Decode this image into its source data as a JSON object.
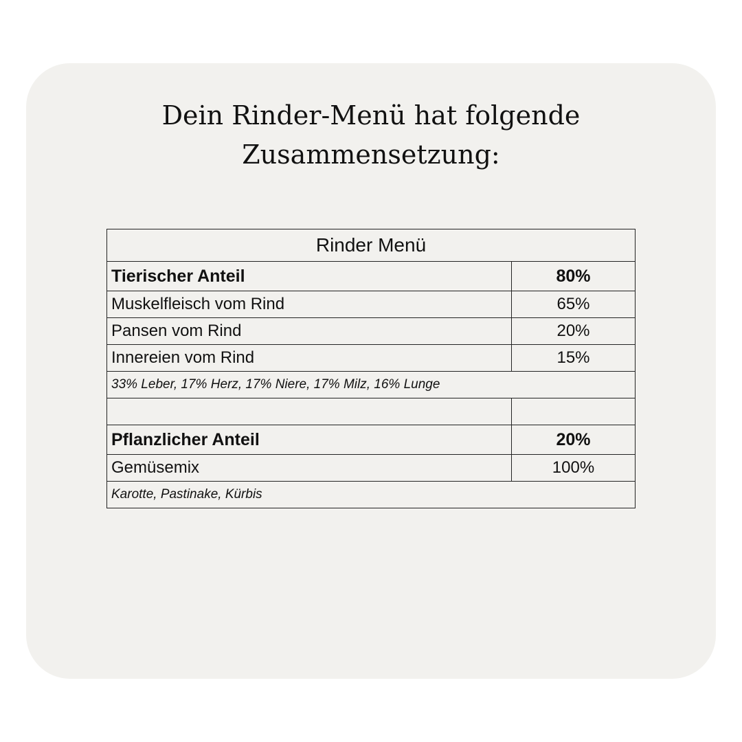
{
  "title": {
    "line1": "Dein Rinder-Menü hat folgende",
    "line2": "Zusammensetzung:"
  },
  "table": {
    "header": "Rinder Menü",
    "animal": {
      "label": "Tierischer Anteil",
      "value": "80%",
      "items": [
        {
          "label": "Muskelfleisch vom Rind",
          "value": "65%"
        },
        {
          "label": "Pansen vom Rind",
          "value": "20%"
        },
        {
          "label": "Innereien vom Rind",
          "value": "15%"
        }
      ],
      "note": "33% Leber, 17% Herz, 17% Niere, 17% Milz, 16% Lunge"
    },
    "plant": {
      "label": "Pflanzlicher Anteil",
      "value": "20%",
      "items": [
        {
          "label": "Gemüsemix",
          "value": "100%"
        }
      ],
      "note": "Karotte, Pastinake, Kürbis"
    }
  }
}
